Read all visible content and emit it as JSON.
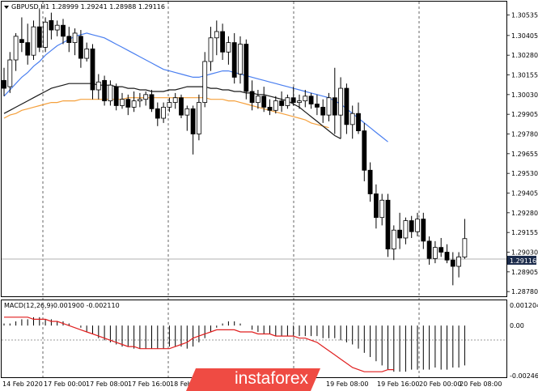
{
  "header": {
    "symbol": "GBPUSD,H1",
    "ohlc": "1.28999 1.29241 1.28988 1.29116"
  },
  "price_badge": "1.29116",
  "macd_header": {
    "name": "MACD(12,26,9)",
    "values": "-0.001900 -0.002110"
  },
  "watermark": "instaforex",
  "colors": {
    "ma_blue": "#4a7ff0",
    "ma_black": "#1a1a1a",
    "ma_orange": "#f5a03c",
    "macd_signal": "#e01f1f",
    "price_badge_bg": "#1c2c4c",
    "watermark_bg": "#ef4b43",
    "grid_dash": "#000000"
  },
  "chart_data": [
    {
      "type": "candlestick",
      "symbol": "GBPUSD",
      "timeframe": "H1",
      "x_tick_labels": [
        "14 Feb 2020",
        "17 Feb 00:00",
        "17 Feb 08:00",
        "17 Feb 16:00",
        "18 Feb 00:00",
        "19 Feb 08:00",
        "19 Feb 16:00",
        "20 Feb 00:00",
        "20 Feb 08:00"
      ],
      "y_tick_labels": [
        "1.30535",
        "1.30405",
        "1.30280",
        "1.30155",
        "1.30030",
        "1.29905",
        "1.29780",
        "1.29655",
        "1.29530",
        "1.29405",
        "1.29280",
        "1.29155",
        "1.29030",
        "1.28905",
        "1.28780"
      ],
      "ylim": [
        1.2875,
        1.3062
      ],
      "candles": [
        {
          "o": 1.3012,
          "h": 1.302,
          "l": 1.3002,
          "c": 1.3007
        },
        {
          "o": 1.3008,
          "h": 1.303,
          "l": 1.3004,
          "c": 1.3025
        },
        {
          "o": 1.3025,
          "h": 1.3042,
          "l": 1.3018,
          "c": 1.304
        },
        {
          "o": 1.3038,
          "h": 1.3052,
          "l": 1.303,
          "c": 1.3036
        },
        {
          "o": 1.3036,
          "h": 1.3048,
          "l": 1.3022,
          "c": 1.3028
        },
        {
          "o": 1.3028,
          "h": 1.305,
          "l": 1.3025,
          "c": 1.3046
        },
        {
          "o": 1.3046,
          "h": 1.3057,
          "l": 1.303,
          "c": 1.3033
        },
        {
          "o": 1.3033,
          "h": 1.3052,
          "l": 1.303,
          "c": 1.3049
        },
        {
          "o": 1.305,
          "h": 1.3055,
          "l": 1.3038,
          "c": 1.3044
        },
        {
          "o": 1.3044,
          "h": 1.305,
          "l": 1.304,
          "c": 1.3047
        },
        {
          "o": 1.3047,
          "h": 1.3051,
          "l": 1.3035,
          "c": 1.304
        },
        {
          "o": 1.304,
          "h": 1.3046,
          "l": 1.303,
          "c": 1.3036
        },
        {
          "o": 1.3036,
          "h": 1.3045,
          "l": 1.3028,
          "c": 1.3042
        },
        {
          "o": 1.304,
          "h": 1.3044,
          "l": 1.302,
          "c": 1.3026
        },
        {
          "o": 1.3026,
          "h": 1.3036,
          "l": 1.3024,
          "c": 1.3032
        },
        {
          "o": 1.3032,
          "h": 1.3035,
          "l": 1.3,
          "c": 1.3006
        },
        {
          "o": 1.3006,
          "h": 1.3016,
          "l": 1.3,
          "c": 1.3011
        },
        {
          "o": 1.3012,
          "h": 1.3015,
          "l": 1.2996,
          "c": 1.2999
        },
        {
          "o": 1.2999,
          "h": 1.3012,
          "l": 1.2996,
          "c": 1.3009
        },
        {
          "o": 1.3008,
          "h": 1.301,
          "l": 1.2993,
          "c": 1.2996
        },
        {
          "o": 1.2996,
          "h": 1.3004,
          "l": 1.2994,
          "c": 1.3
        },
        {
          "o": 1.3,
          "h": 1.3003,
          "l": 1.299,
          "c": 1.2995
        },
        {
          "o": 1.2995,
          "h": 1.3005,
          "l": 1.2992,
          "c": 1.2999
        },
        {
          "o": 1.2999,
          "h": 1.3004,
          "l": 1.2995,
          "c": 1.3
        },
        {
          "o": 1.3,
          "h": 1.3005,
          "l": 1.2996,
          "c": 1.3003
        },
        {
          "o": 1.3003,
          "h": 1.3006,
          "l": 1.2992,
          "c": 1.2994
        },
        {
          "o": 1.2994,
          "h": 1.2998,
          "l": 1.2983,
          "c": 1.2988
        },
        {
          "o": 1.2988,
          "h": 1.2998,
          "l": 1.2985,
          "c": 1.2995
        },
        {
          "o": 1.2995,
          "h": 1.3001,
          "l": 1.2992,
          "c": 1.2998
        },
        {
          "o": 1.2998,
          "h": 1.3004,
          "l": 1.2994,
          "c": 1.3001
        },
        {
          "o": 1.3001,
          "h": 1.3003,
          "l": 1.2988,
          "c": 1.299
        },
        {
          "o": 1.299,
          "h": 1.2996,
          "l": 1.298,
          "c": 1.2994
        },
        {
          "o": 1.2994,
          "h": 1.2996,
          "l": 1.2965,
          "c": 1.2978
        },
        {
          "o": 1.2978,
          "h": 1.3003,
          "l": 1.2974,
          "c": 1.2998
        },
        {
          "o": 1.2998,
          "h": 1.303,
          "l": 1.2995,
          "c": 1.3024
        },
        {
          "o": 1.3024,
          "h": 1.3046,
          "l": 1.3018,
          "c": 1.3039
        },
        {
          "o": 1.3039,
          "h": 1.305,
          "l": 1.3028,
          "c": 1.3043
        },
        {
          "o": 1.3043,
          "h": 1.3048,
          "l": 1.3025,
          "c": 1.303
        },
        {
          "o": 1.303,
          "h": 1.304,
          "l": 1.3022,
          "c": 1.3036
        },
        {
          "o": 1.3036,
          "h": 1.3042,
          "l": 1.301,
          "c": 1.3014
        },
        {
          "o": 1.3016,
          "h": 1.304,
          "l": 1.301,
          "c": 1.3035
        },
        {
          "o": 1.3035,
          "h": 1.3038,
          "l": 1.3,
          "c": 1.3005
        },
        {
          "o": 1.3005,
          "h": 1.3012,
          "l": 1.2993,
          "c": 1.2998
        },
        {
          "o": 1.2998,
          "h": 1.3006,
          "l": 1.2994,
          "c": 1.3002
        },
        {
          "o": 1.3002,
          "h": 1.3008,
          "l": 1.2992,
          "c": 1.2995
        },
        {
          "o": 1.2995,
          "h": 1.3,
          "l": 1.299,
          "c": 1.2993
        },
        {
          "o": 1.2993,
          "h": 1.3002,
          "l": 1.2991,
          "c": 1.2999
        },
        {
          "o": 1.2999,
          "h": 1.3005,
          "l": 1.2992,
          "c": 1.2996
        },
        {
          "o": 1.2996,
          "h": 1.3003,
          "l": 1.2994,
          "c": 1.3001
        },
        {
          "o": 1.3001,
          "h": 1.3008,
          "l": 1.2996,
          "c": 1.2998
        },
        {
          "o": 1.2998,
          "h": 1.3003,
          "l": 1.2994,
          "c": 1.2999
        },
        {
          "o": 1.2999,
          "h": 1.3006,
          "l": 1.2995,
          "c": 1.3002
        },
        {
          "o": 1.3002,
          "h": 1.3004,
          "l": 1.2994,
          "c": 1.2997
        },
        {
          "o": 1.2997,
          "h": 1.3003,
          "l": 1.299,
          "c": 1.2995
        },
        {
          "o": 1.2995,
          "h": 1.3,
          "l": 1.2985,
          "c": 1.299
        },
        {
          "o": 1.299,
          "h": 1.3004,
          "l": 1.2986,
          "c": 1.3001
        },
        {
          "o": 1.3001,
          "h": 1.302,
          "l": 1.2978,
          "c": 1.299
        },
        {
          "o": 1.299,
          "h": 1.3014,
          "l": 1.2975,
          "c": 1.3007
        },
        {
          "o": 1.3007,
          "h": 1.301,
          "l": 1.2978,
          "c": 1.2984
        },
        {
          "o": 1.2984,
          "h": 1.2996,
          "l": 1.2975,
          "c": 1.2991
        },
        {
          "o": 1.2991,
          "h": 1.2998,
          "l": 1.2978,
          "c": 1.298
        },
        {
          "o": 1.298,
          "h": 1.2985,
          "l": 1.2948,
          "c": 1.2955
        },
        {
          "o": 1.2955,
          "h": 1.296,
          "l": 1.2935,
          "c": 1.294
        },
        {
          "o": 1.294,
          "h": 1.2946,
          "l": 1.2918,
          "c": 1.2925
        },
        {
          "o": 1.2925,
          "h": 1.294,
          "l": 1.292,
          "c": 1.2936
        },
        {
          "o": 1.2936,
          "h": 1.294,
          "l": 1.29,
          "c": 1.2905
        },
        {
          "o": 1.2905,
          "h": 1.292,
          "l": 1.2898,
          "c": 1.2917
        },
        {
          "o": 1.2917,
          "h": 1.2928,
          "l": 1.2905,
          "c": 1.2912
        },
        {
          "o": 1.2912,
          "h": 1.2925,
          "l": 1.2908,
          "c": 1.2923
        },
        {
          "o": 1.2923,
          "h": 1.2926,
          "l": 1.2912,
          "c": 1.2916
        },
        {
          "o": 1.2916,
          "h": 1.2928,
          "l": 1.2913,
          "c": 1.2924
        },
        {
          "o": 1.2924,
          "h": 1.2928,
          "l": 1.2905,
          "c": 1.291
        },
        {
          "o": 1.291,
          "h": 1.2913,
          "l": 1.2895,
          "c": 1.2899
        },
        {
          "o": 1.2899,
          "h": 1.291,
          "l": 1.2896,
          "c": 1.2906
        },
        {
          "o": 1.2906,
          "h": 1.2912,
          "l": 1.29,
          "c": 1.2903
        },
        {
          "o": 1.2903,
          "h": 1.2908,
          "l": 1.2896,
          "c": 1.2898
        },
        {
          "o": 1.2898,
          "h": 1.2903,
          "l": 1.2882,
          "c": 1.2894
        },
        {
          "o": 1.2894,
          "h": 1.2903,
          "l": 1.2887,
          "c": 1.29
        },
        {
          "o": 1.28999,
          "h": 1.29241,
          "l": 1.28988,
          "c": 1.29116
        }
      ],
      "ma_blue": [
        1.3002,
        1.3006,
        1.301,
        1.3014,
        1.3017,
        1.3021,
        1.3024,
        1.3028,
        1.3031,
        1.3034,
        1.3036,
        1.3038,
        1.304,
        1.3041,
        1.3042,
        1.3041,
        1.304,
        1.3039,
        1.3037,
        1.3035,
        1.3033,
        1.3031,
        1.3029,
        1.3027,
        1.3025,
        1.3023,
        1.3021,
        1.3019,
        1.3018,
        1.3017,
        1.3016,
        1.3015,
        1.3014,
        1.3014,
        1.3015,
        1.3016,
        1.3017,
        1.3018,
        1.3018,
        1.3017,
        1.3016,
        1.3015,
        1.3014,
        1.3013,
        1.3012,
        1.3011,
        1.301,
        1.3009,
        1.3008,
        1.3007,
        1.3006,
        1.3005,
        1.3004,
        1.3003,
        1.3002,
        1.3001,
        1.2999,
        1.2997,
        1.2994,
        1.2991,
        1.2988,
        1.2985,
        1.2982,
        1.2979,
        1.2976,
        1.2973
      ],
      "ma_black": [
        1.2991,
        1.2993,
        1.2995,
        1.2997,
        1.2999,
        1.3001,
        1.3003,
        1.3005,
        1.3007,
        1.3008,
        1.3009,
        1.301,
        1.301,
        1.301,
        1.301,
        1.301,
        1.3009,
        1.3009,
        1.3009,
        1.3008,
        1.3008,
        1.3007,
        1.3007,
        1.3006,
        1.3006,
        1.3005,
        1.3005,
        1.3005,
        1.3006,
        1.3006,
        1.3007,
        1.3008,
        1.3008,
        1.3008,
        1.3008,
        1.3007,
        1.3007,
        1.3006,
        1.3006,
        1.3005,
        1.3005,
        1.3004,
        1.3004,
        1.3003,
        1.3003,
        1.3002,
        1.3001,
        1.3,
        1.2999,
        1.2997,
        1.2995,
        1.2992,
        1.2989,
        1.2986,
        1.2983,
        1.298,
        1.2977,
        1.2975
      ],
      "ma_orange": [
        1.2988,
        1.299,
        1.2991,
        1.2993,
        1.2994,
        1.2995,
        1.2996,
        1.2997,
        1.2998,
        1.2998,
        1.2999,
        1.2999,
        1.2999,
        1.3,
        1.3,
        1.3,
        1.3,
        1.3,
        1.3,
        1.3,
        1.3,
        1.3001,
        1.3001,
        1.3001,
        1.3001,
        1.3001,
        1.3001,
        1.3001,
        1.3001,
        1.3001,
        1.3001,
        1.3001,
        1.3001,
        1.3001,
        1.3001,
        1.3,
        1.3,
        1.3,
        1.2999,
        1.2999,
        1.2998,
        1.2997,
        1.2996,
        1.2995,
        1.2994,
        1.2993,
        1.2992,
        1.2991,
        1.299,
        1.2989,
        1.2988,
        1.2987,
        1.2985,
        1.2984,
        1.2983,
        1.2982
      ]
    },
    {
      "type": "bar",
      "name": "MACD(12,26,9)",
      "y_tick_labels": [
        "0.001204",
        "0.00",
        "-0.002464"
      ],
      "ylim": [
        -0.002464,
        0.001204
      ],
      "histogram": [
        0.0001,
        0.0001,
        0.0002,
        0.0003,
        0.0003,
        0.0004,
        0.0004,
        0.0003,
        0.0003,
        0.0002,
        0.0002,
        0.0001,
        0.0,
        -0.0001,
        -0.0003,
        -0.0004,
        -0.0006,
        -0.0007,
        -0.0008,
        -0.0009,
        -0.001,
        -0.001,
        -0.0011,
        -0.0011,
        -0.0011,
        -0.0011,
        -0.0011,
        -0.0011,
        -0.001,
        -0.001,
        -0.001,
        -0.0011,
        -0.001,
        -0.0008,
        -0.0006,
        -0.0003,
        -0.0001,
        0.0001,
        0.0002,
        0.0002,
        0.0001,
        0.0,
        -0.0002,
        -0.0003,
        -0.0004,
        -0.0004,
        -0.0005,
        -0.0005,
        -0.0005,
        -0.0005,
        -0.0005,
        -0.0005,
        -0.0005,
        -0.0005,
        -0.0006,
        -0.0006,
        -0.0006,
        -0.0007,
        -0.0008,
        -0.0009,
        -0.0011,
        -0.0013,
        -0.0015,
        -0.0017,
        -0.0019,
        -0.0021,
        -0.0022,
        -0.0022,
        -0.0022,
        -0.0021,
        -0.0021,
        -0.0021,
        -0.0021,
        -0.002,
        -0.0021,
        -0.0021,
        -0.002,
        -0.002,
        -0.0019
      ],
      "signal": [
        0.0004,
        0.0004,
        0.0004,
        0.0004,
        0.0004,
        0.0003,
        0.0003,
        0.0003,
        0.0002,
        0.0002,
        0.0001,
        0.0,
        -0.0001,
        -0.0002,
        -0.0003,
        -0.0004,
        -0.0005,
        -0.0006,
        -0.0007,
        -0.0008,
        -0.0009,
        -0.001,
        -0.001,
        -0.0011,
        -0.0011,
        -0.0011,
        -0.0011,
        -0.0011,
        -0.0011,
        -0.001,
        -0.0009,
        -0.0008,
        -0.0006,
        -0.0005,
        -0.0004,
        -0.0003,
        -0.0002,
        -0.0002,
        -0.0002,
        -0.0002,
        -0.0003,
        -0.0003,
        -0.0003,
        -0.0004,
        -0.0004,
        -0.0004,
        -0.0005,
        -0.0005,
        -0.0005,
        -0.0005,
        -0.0006,
        -0.0006,
        -0.0007,
        -0.0008,
        -0.001,
        -0.0012,
        -0.0014,
        -0.0016,
        -0.0018,
        -0.002,
        -0.0021,
        -0.0022,
        -0.0022,
        -0.0022,
        -0.0022,
        -0.0021,
        -0.0021
      ]
    }
  ]
}
